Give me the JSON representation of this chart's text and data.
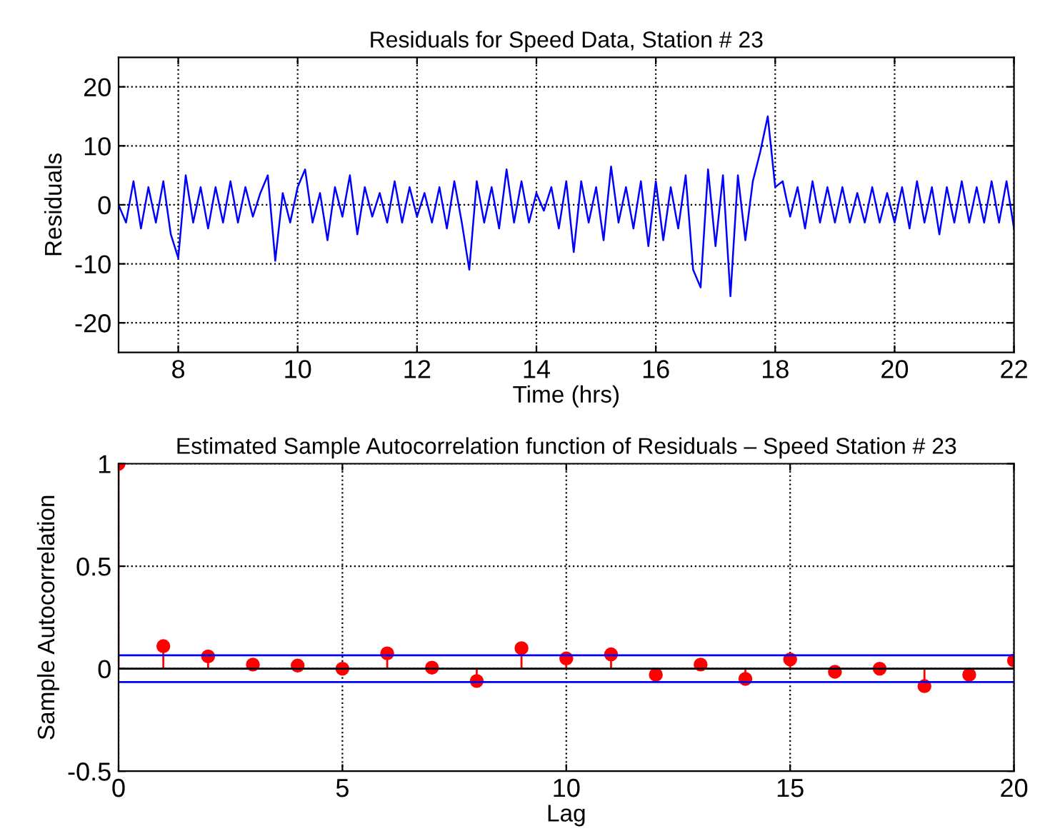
{
  "chart_data": [
    {
      "type": "line",
      "title": "Residuals for Speed Data, Station # 23",
      "xlabel": "Time (hrs)",
      "ylabel": "Residuals",
      "x": [
        7.0,
        7.125,
        7.25,
        7.375,
        7.5,
        7.625,
        7.75,
        7.875,
        8.0,
        8.125,
        8.25,
        8.375,
        8.5,
        8.625,
        8.75,
        8.875,
        9.0,
        9.125,
        9.25,
        9.375,
        9.5,
        9.625,
        9.75,
        9.875,
        10.0,
        10.125,
        10.25,
        10.375,
        10.5,
        10.625,
        10.75,
        10.875,
        11.0,
        11.125,
        11.25,
        11.375,
        11.5,
        11.625,
        11.75,
        11.875,
        12.0,
        12.125,
        12.25,
        12.375,
        12.5,
        12.625,
        12.75,
        12.875,
        13.0,
        13.125,
        13.25,
        13.375,
        13.5,
        13.625,
        13.75,
        13.875,
        14.0,
        14.125,
        14.25,
        14.375,
        14.5,
        14.625,
        14.75,
        14.875,
        15.0,
        15.125,
        15.25,
        15.375,
        15.5,
        15.625,
        15.75,
        15.875,
        16.0,
        16.125,
        16.25,
        16.375,
        16.5,
        16.625,
        16.75,
        16.875,
        17.0,
        17.125,
        17.25,
        17.375,
        17.5,
        17.625,
        17.75,
        17.875,
        18.0,
        18.125,
        18.25,
        18.375,
        18.5,
        18.625,
        18.75,
        18.875,
        19.0,
        19.125,
        19.25,
        19.375,
        19.5,
        19.625,
        19.75,
        19.875,
        20.0,
        20.125,
        20.25,
        20.375,
        20.5,
        20.625,
        20.75,
        20.875,
        21.0,
        21.125,
        21.25,
        21.375,
        21.5,
        21.625,
        21.75,
        21.875,
        22.0
      ],
      "series": [
        {
          "color": "#0000ff",
          "values": [
            0,
            -3,
            4,
            -4,
            3,
            -3,
            4,
            -5,
            -9,
            5,
            -3,
            3,
            -4,
            3,
            -3,
            4,
            -3,
            3,
            -2,
            2,
            5,
            -9.5,
            2,
            -3,
            3,
            6,
            -3,
            2,
            -6,
            3,
            -2,
            5,
            -5,
            3,
            -2,
            2,
            -3,
            4,
            -3,
            3,
            -2,
            2,
            -3,
            3,
            -4,
            4,
            -3,
            -11,
            4,
            -3,
            3,
            -4,
            6,
            -3,
            4,
            -3,
            2,
            -1,
            3,
            -4,
            4,
            -8,
            4,
            -3,
            3,
            -6,
            6.5,
            -3,
            3,
            -4,
            4,
            -7,
            4,
            -6,
            3,
            -4,
            5,
            -11,
            -14,
            6,
            -7,
            5,
            -15.5,
            5,
            -6,
            4,
            9,
            15,
            3,
            4,
            -2,
            3,
            -4,
            4,
            -3,
            3,
            -3,
            3,
            -3,
            2,
            -3,
            3,
            -3,
            2,
            -3,
            3,
            -4,
            4,
            -3,
            3,
            -5,
            3,
            -3,
            4,
            -3,
            3,
            -3,
            4,
            -3,
            4,
            -4
          ]
        }
      ],
      "xlim": [
        7,
        22
      ],
      "xticks": [
        8,
        10,
        12,
        14,
        16,
        18,
        20,
        22
      ],
      "ylim": [
        -25,
        25
      ],
      "yticks": [
        -20,
        -10,
        0,
        10,
        20
      ],
      "grid": true,
      "line_style": "solid",
      "marker": "none"
    },
    {
      "type": "lollipop",
      "title": "Estimated Sample Autocorrelation function of Residuals – Speed Station # 23",
      "xlabel": "Lag",
      "ylabel": "Sample Autocorrelation",
      "x": [
        0,
        1,
        2,
        3,
        4,
        5,
        6,
        7,
        8,
        9,
        10,
        11,
        12,
        13,
        14,
        15,
        16,
        17,
        18,
        19,
        20
      ],
      "series": [
        {
          "color": "#ff0000",
          "values": [
            1,
            0.11,
            0.06,
            0.02,
            0.015,
            0,
            0.075,
            0.005,
            -0.06,
            0.1,
            0.05,
            0.07,
            -0.03,
            0.02,
            -0.05,
            0.045,
            -0.015,
            0,
            -0.085,
            -0.03,
            0.04
          ]
        }
      ],
      "ref_lines": [
        {
          "axis": "y",
          "value": 0.065,
          "color": "#0000ff"
        },
        {
          "axis": "y",
          "value": -0.065,
          "color": "#0000ff"
        }
      ],
      "xlim": [
        0,
        20
      ],
      "xticks": [
        0,
        5,
        10,
        15,
        20
      ],
      "ylim": [
        -0.5,
        1
      ],
      "yticks": [
        -0.5,
        0,
        0.5,
        1
      ],
      "grid": true,
      "marker": "circle"
    }
  ]
}
